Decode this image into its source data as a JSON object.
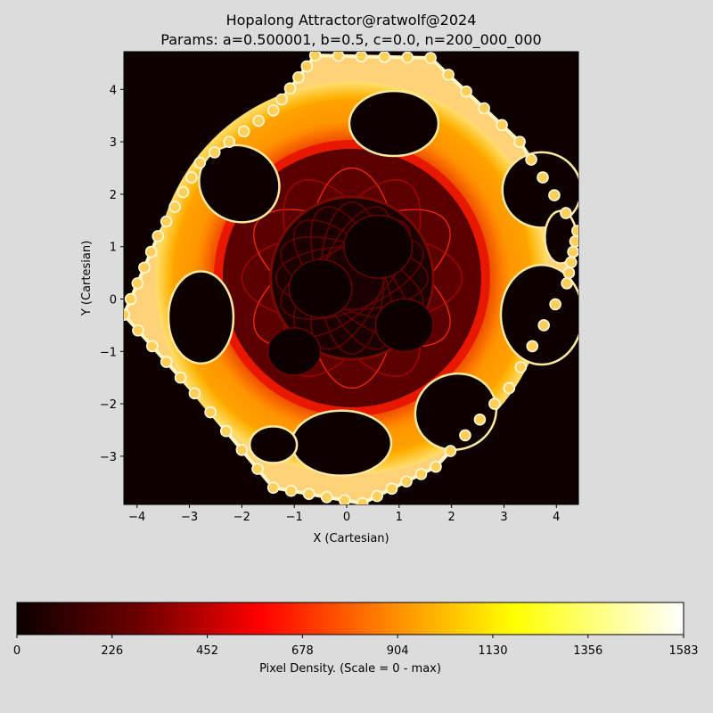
{
  "chart_data": {
    "type": "heatmap",
    "title": "Hopalong Attractor@ratwolf@2024",
    "subtitle": "Params: a=0.500001, b=0.5, c=0.0, n=200_000_000",
    "xlabel": "X (Cartesian)",
    "ylabel": "Y (Cartesian)",
    "xlim": [
      -4.25,
      4.42
    ],
    "ylim": [
      -3.92,
      4.72
    ],
    "xticks": [
      -4,
      -3,
      -2,
      -1,
      0,
      1,
      2,
      3,
      4
    ],
    "yticks": [
      -3,
      -2,
      -1,
      0,
      1,
      2,
      3,
      4
    ],
    "xtick_labels": [
      "−4",
      "−3",
      "−2",
      "−1",
      "0",
      "1",
      "2",
      "3",
      "4"
    ],
    "ytick_labels": [
      "−3",
      "−2",
      "−1",
      "0",
      "1",
      "2",
      "3",
      "4"
    ],
    "params": {
      "a": 0.500001,
      "b": 0.5,
      "c": 0.0,
      "n": 200000000
    },
    "background_color": "#0c0000",
    "colormap": "hot",
    "colorbar": {
      "label": "Pixel Density. (Scale = 0 - max)",
      "min": 0,
      "max": 1583,
      "ticks": [
        0,
        226,
        452,
        678,
        904,
        1130,
        1356,
        1583
      ],
      "tick_labels": [
        "0",
        "226",
        "452",
        "678",
        "904",
        "1130",
        "1356",
        "1583"
      ],
      "orientation": "horizontal",
      "placement": "bottom"
    },
    "grid": false,
    "structure": {
      "outer_holes": [
        {
          "x": 0.9,
          "y": 3.35,
          "rx": 0.85,
          "ry": 0.62,
          "rot": 0
        },
        {
          "x": 3.72,
          "y": 2.08,
          "rx": 0.75,
          "ry": 0.72,
          "rot": 0
        },
        {
          "x": 4.08,
          "y": 1.18,
          "rx": 0.3,
          "ry": 0.5,
          "rot": 0
        },
        {
          "x": 3.72,
          "y": -0.3,
          "rx": 0.78,
          "ry": 0.95,
          "rot": 0
        },
        {
          "x": 2.08,
          "y": -2.15,
          "rx": 0.78,
          "ry": 0.72,
          "rot": -20
        },
        {
          "x": -0.1,
          "y": -2.75,
          "rx": 0.95,
          "ry": 0.62,
          "rot": 0
        },
        {
          "x": -1.4,
          "y": -2.78,
          "rx": 0.45,
          "ry": 0.35,
          "rot": 0
        },
        {
          "x": -2.78,
          "y": -0.35,
          "rx": 0.62,
          "ry": 0.88,
          "rot": 0
        },
        {
          "x": -2.05,
          "y": 2.2,
          "rx": 0.78,
          "ry": 0.72,
          "rot": 30
        }
      ],
      "inner_dark_holes": [
        {
          "x": 0.6,
          "y": 1.0,
          "rx": 0.65,
          "ry": 0.6
        },
        {
          "x": -0.5,
          "y": 0.2,
          "rx": 0.6,
          "ry": 0.55
        },
        {
          "x": 1.1,
          "y": -0.5,
          "rx": 0.55,
          "ry": 0.5
        },
        {
          "x": -1.0,
          "y": -1.0,
          "rx": 0.5,
          "ry": 0.45
        }
      ]
    }
  }
}
